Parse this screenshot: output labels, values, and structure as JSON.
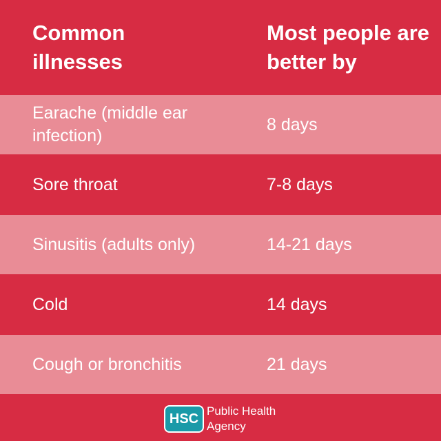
{
  "header": {
    "columns": [
      "Common illnesses",
      "Most people are better by"
    ]
  },
  "table": {
    "rows": [
      [
        "Earache (middle ear infection)",
        "8 days"
      ],
      [
        "Sore throat",
        "7-8 days"
      ],
      [
        "Sinusitis (adults only)",
        "14-21 days"
      ],
      [
        "Cold",
        "14 days"
      ],
      [
        "Cough or bronchitis",
        "21 days"
      ]
    ]
  },
  "footer": {
    "logo": "HSC",
    "organization": [
      "Public Health",
      "Agency"
    ]
  }
}
